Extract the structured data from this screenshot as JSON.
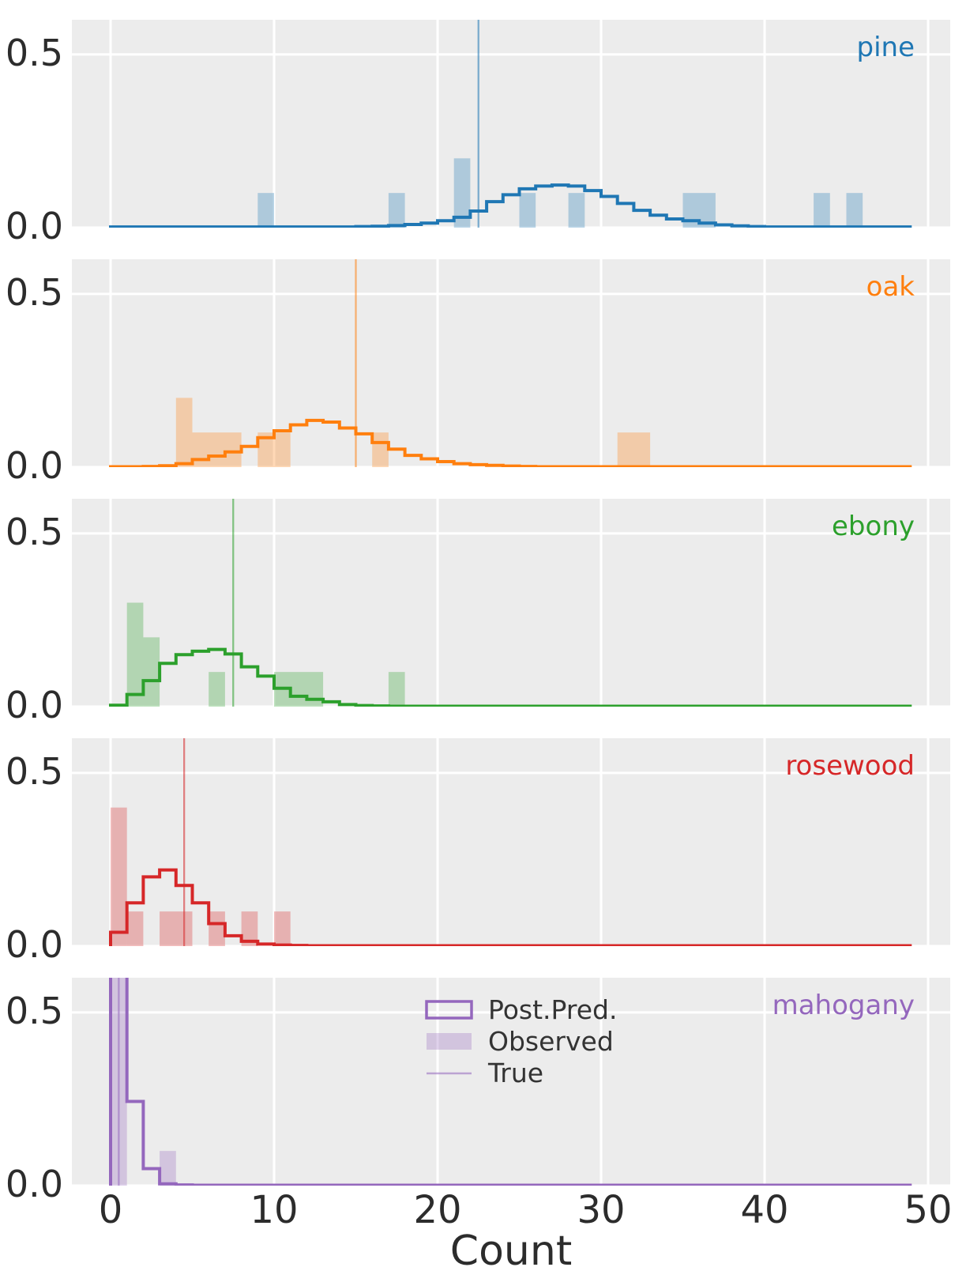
{
  "figure": {
    "bg": "#ffffff",
    "plot_bg": "#ececec",
    "grid_color": "#ffffff",
    "tick_color": "#2c2c2c",
    "legend_text_color": "#333333",
    "xlabel": "Count"
  },
  "axes": {
    "x_ticks": [
      "0",
      "10",
      "20",
      "30",
      "40",
      "50"
    ],
    "x_tick_values": [
      0,
      10,
      20,
      30,
      40,
      50
    ],
    "y_ticks": [
      "0.0",
      "0.5"
    ],
    "y_tick_values": [
      0,
      0.5
    ],
    "y_lim": [
      0,
      0.6
    ],
    "x_lim": [
      0,
      50
    ],
    "grid": true
  },
  "legend": {
    "items": [
      {
        "label": "Post.Pred.",
        "swatch": "step-outline-rect"
      },
      {
        "label": "Observed",
        "swatch": "filled-rect"
      },
      {
        "label": "True",
        "swatch": "line"
      }
    ]
  },
  "chart_data": {
    "type": "step-histogram-grid",
    "title": "",
    "xlabel": "Count",
    "ylabel": "",
    "x_bin_width": 1,
    "legend_position": "center of bottom panel",
    "panels": [
      {
        "name": "pine",
        "color": "#1f77b4",
        "true_value": 22.5,
        "observed_bars": [
          [
            9,
            10,
            0.1
          ],
          [
            17,
            18,
            0.1
          ],
          [
            21,
            22,
            0.2
          ],
          [
            25,
            26,
            0.1
          ],
          [
            28,
            29,
            0.1
          ],
          [
            35,
            37,
            0.1
          ],
          [
            43,
            44,
            0.1
          ],
          [
            45,
            46,
            0.1
          ]
        ],
        "post_pred": [
          0.002,
          0.002,
          0.002,
          0.002,
          0.002,
          0.002,
          0.002,
          0.002,
          0.002,
          0.002,
          0.002,
          0.002,
          0.002,
          0.002,
          0.002,
          0.003,
          0.004,
          0.006,
          0.009,
          0.013,
          0.02,
          0.03,
          0.048,
          0.075,
          0.095,
          0.112,
          0.12,
          0.123,
          0.12,
          0.107,
          0.09,
          0.07,
          0.05,
          0.036,
          0.025,
          0.02,
          0.013,
          0.008,
          0.005,
          0.003,
          0.002,
          0.002,
          0.002,
          0.002,
          0.002,
          0.002,
          0.002,
          0.002,
          0.002,
          0.002
        ]
      },
      {
        "name": "oak",
        "color": "#ff7f0e",
        "true_value": 15.0,
        "observed_bars": [
          [
            4,
            5,
            0.2
          ],
          [
            5,
            8,
            0.1
          ],
          [
            9,
            11,
            0.1
          ],
          [
            16,
            17,
            0.1
          ],
          [
            31,
            33,
            0.1
          ]
        ],
        "post_pred": [
          0.001,
          0.001,
          0.002,
          0.004,
          0.01,
          0.022,
          0.032,
          0.044,
          0.06,
          0.085,
          0.105,
          0.122,
          0.135,
          0.13,
          0.113,
          0.096,
          0.071,
          0.052,
          0.034,
          0.024,
          0.016,
          0.01,
          0.007,
          0.005,
          0.003,
          0.002,
          0.001,
          0.001,
          0.001,
          0.001,
          0.001,
          0.001,
          0.001,
          0.001,
          0.001,
          0.001,
          0.001,
          0.001,
          0.001,
          0.001,
          0.001,
          0.001,
          0.001,
          0.001,
          0.001,
          0.001,
          0.001,
          0.001,
          0.001,
          0.001
        ]
      },
      {
        "name": "ebony",
        "color": "#2ca02c",
        "true_value": 7.5,
        "observed_bars": [
          [
            1,
            2,
            0.3
          ],
          [
            2,
            3,
            0.2
          ],
          [
            6,
            7,
            0.1
          ],
          [
            10,
            13,
            0.1
          ],
          [
            17,
            18,
            0.1
          ]
        ],
        "post_pred": [
          0.004,
          0.035,
          0.075,
          0.125,
          0.15,
          0.16,
          0.165,
          0.152,
          0.115,
          0.088,
          0.053,
          0.03,
          0.021,
          0.014,
          0.006,
          0.003,
          0.002,
          0.001,
          0.001,
          0.001,
          0.001,
          0.001,
          0.001,
          0.001,
          0.001,
          0.001,
          0.001,
          0.001,
          0.001,
          0.001,
          0.001,
          0.001,
          0.001,
          0.001,
          0.001,
          0.001,
          0.001,
          0.001,
          0.001,
          0.001,
          0.001,
          0.001,
          0.001,
          0.001,
          0.001,
          0.001,
          0.001,
          0.001,
          0.001,
          0.001
        ]
      },
      {
        "name": "rosewood",
        "color": "#d62728",
        "true_value": 4.5,
        "observed_bars": [
          [
            0,
            1,
            0.4
          ],
          [
            1,
            2,
            0.1
          ],
          [
            3,
            5,
            0.1
          ],
          [
            6,
            7,
            0.1
          ],
          [
            8,
            9,
            0.1
          ],
          [
            10,
            11,
            0.1
          ]
        ],
        "post_pred": [
          0.04,
          0.125,
          0.2,
          0.22,
          0.175,
          0.125,
          0.065,
          0.03,
          0.014,
          0.006,
          0.003,
          0.002,
          0.001,
          0.001,
          0.001,
          0.001,
          0.001,
          0.001,
          0.001,
          0.001,
          0.001,
          0.001,
          0.001,
          0.001,
          0.001,
          0.001,
          0.001,
          0.001,
          0.001,
          0.001,
          0.001,
          0.001,
          0.001,
          0.001,
          0.001,
          0.001,
          0.001,
          0.001,
          0.001,
          0.001,
          0.001,
          0.001,
          0.001,
          0.001,
          0.001,
          0.001,
          0.001,
          0.001,
          0.001,
          0.001
        ]
      },
      {
        "name": "mahogany",
        "color": "#9467bd",
        "true_value": 0.5,
        "observed_bars": [
          [
            0,
            1,
            0.9
          ],
          [
            3,
            4,
            0.1
          ]
        ],
        "post_pred": [
          0.62,
          0.243,
          0.049,
          0.005,
          0.002,
          0.001,
          0.001,
          0.001,
          0.001,
          0.001,
          0.001,
          0.001,
          0.001,
          0.001,
          0.001,
          0.001,
          0.001,
          0.001,
          0.001,
          0.001,
          0.001,
          0.001,
          0.001,
          0.001,
          0.001,
          0.001,
          0.001,
          0.001,
          0.001,
          0.001,
          0.001,
          0.001,
          0.001,
          0.001,
          0.001,
          0.001,
          0.001,
          0.001,
          0.001,
          0.001,
          0.001,
          0.001,
          0.001,
          0.001,
          0.001,
          0.001,
          0.001,
          0.001,
          0.001,
          0.001
        ]
      }
    ]
  }
}
